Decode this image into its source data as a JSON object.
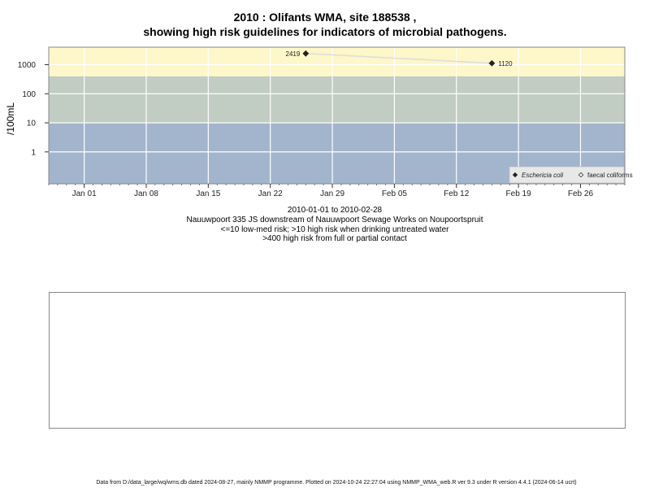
{
  "header": {
    "title_line1": "2010 : Olifants WMA, site 188538 ,",
    "title_line2": "showing high risk guidelines for indicators of microbial pathogens."
  },
  "captions": [
    "2010-01-01 to 2010-02-28",
    "Nauuwpoort 335 JS downstream of Nauuwpoort Sewage Works on Noupoortspruit",
    "<=10 low-med risk; >10 high risk when drinking untreated water",
    ">400 high risk from full or partial contact"
  ],
  "footer": "Data from D:/data_large/wq/wms.db dated 2024-08-27, mainly NMMP programme. Plotted on 2024-10-24 22:27:04 using NMMP_WMA_web.R ver 9.3 under R version 4.4.1 (2024-06-14 ucrt)",
  "chart_data": {
    "type": "line",
    "title": "2010 : Olifants WMA, site 188538 , showing high risk guidelines for indicators of microbial pathogens.",
    "ylabel": "/100mL",
    "xlabel": "",
    "y_scale": "log10",
    "ylim": [
      0.08,
      4000
    ],
    "xlim": [
      "2009-12-28",
      "2010-03-03"
    ],
    "x_ticks": [
      {
        "date": "2010-01-01",
        "label": "Jan 01"
      },
      {
        "date": "2010-01-08",
        "label": "Jan 08"
      },
      {
        "date": "2010-01-15",
        "label": "Jan 15"
      },
      {
        "date": "2010-01-22",
        "label": "Jan 22"
      },
      {
        "date": "2010-01-29",
        "label": "Jan 29"
      },
      {
        "date": "2010-02-05",
        "label": "Feb 05"
      },
      {
        "date": "2010-02-12",
        "label": "Feb 12"
      },
      {
        "date": "2010-02-19",
        "label": "Feb 19"
      },
      {
        "date": "2010-02-26",
        "label": "Feb 26"
      }
    ],
    "y_ticks": [
      {
        "value": 1,
        "label": "1"
      },
      {
        "value": 10,
        "label": "10"
      },
      {
        "value": 100,
        "label": "100"
      },
      {
        "value": 1000,
        "label": "1000"
      }
    ],
    "risk_bands": [
      {
        "from": 0.08,
        "to": 10,
        "color": "#a3b4cd"
      },
      {
        "from": 10,
        "to": 400,
        "color": "#c1ccc3"
      },
      {
        "from": 400,
        "to": 4000,
        "color": "#fdf7c9"
      }
    ],
    "grid": true,
    "legend_position": "bottom-right",
    "series": [
      {
        "name": "Eschericia coli",
        "marker": "filled-diamond",
        "color": "#222222",
        "line_color": "#dddddd",
        "points": [
          {
            "x": "2010-01-26",
            "y": 2419,
            "label": "2419"
          },
          {
            "x": "2010-02-16",
            "y": 1120,
            "label": "1120"
          }
        ]
      },
      {
        "name": "faecal coliforms",
        "marker": "open-diamond",
        "color": "#222222",
        "points": []
      }
    ]
  }
}
